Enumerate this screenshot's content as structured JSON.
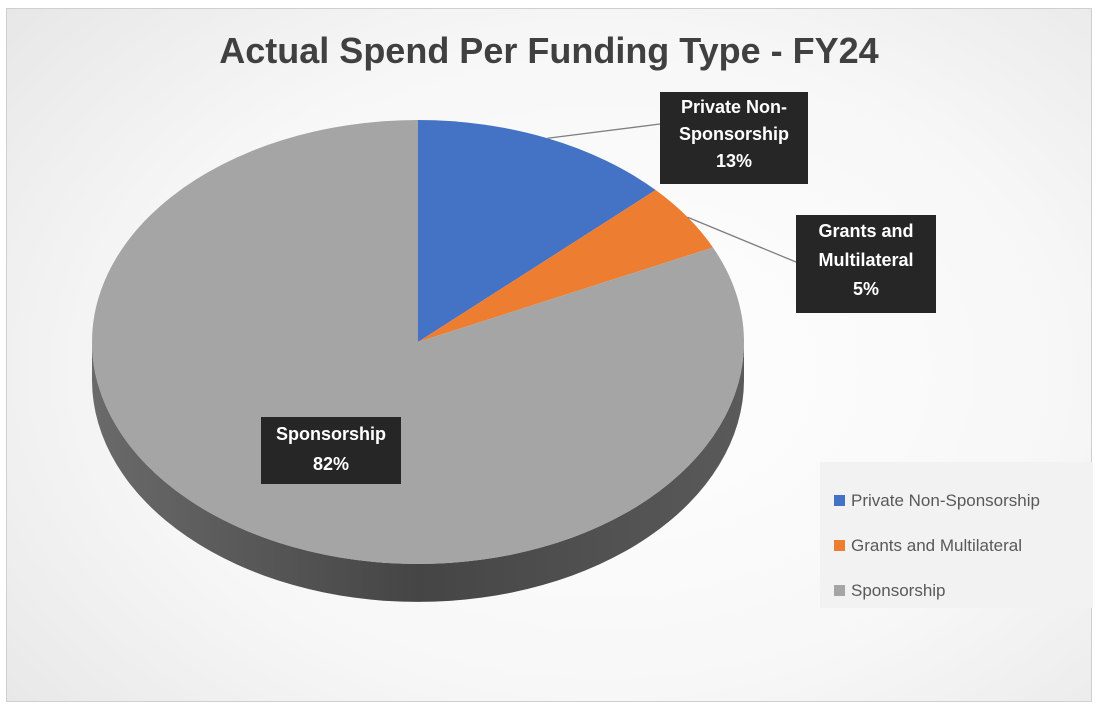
{
  "chart_data": {
    "type": "pie",
    "title": "Actual Spend Per Funding Type - FY24",
    "slices": [
      {
        "label": "Private Non-Sponsorship",
        "value": 13,
        "display": "13%",
        "color": "#4472c4"
      },
      {
        "label": "Grants and Multilateral",
        "value": 5,
        "display": "5%",
        "color": "#ed7d31"
      },
      {
        "label": "Sponsorship",
        "value": 82,
        "display": "82%",
        "color": "#a5a5a5"
      }
    ],
    "data_labels": {
      "private": {
        "lines": [
          "Private Non-",
          "Sponsorship"
        ],
        "value": "13%"
      },
      "grants": {
        "lines": [
          "Grants and",
          "Multilateral"
        ],
        "value": "5%"
      },
      "sponsorship": {
        "lines": [
          "Sponsorship"
        ],
        "value": "82%"
      }
    },
    "legend": {
      "position": "right",
      "items": [
        "Private Non-Sponsorship",
        "Grants and Multilateral",
        "Sponsorship"
      ]
    },
    "style": "3d"
  }
}
